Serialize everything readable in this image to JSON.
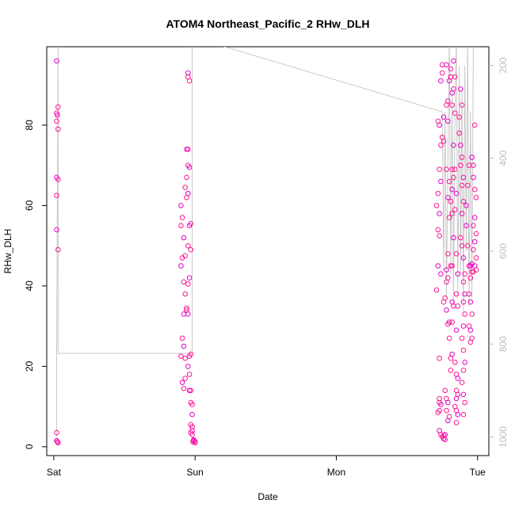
{
  "chart_data": {
    "type": "scatter",
    "title": "ATOM4 Northeast_Pacific_2 RHw_DLH",
    "xlabel": "Date",
    "ylabel": "RHw_DLH",
    "xlim": [
      -0.05,
      3.08
    ],
    "ylim": [
      -2.2,
      99.5
    ],
    "x_ticks": [
      {
        "v": 0,
        "label": "Sat"
      },
      {
        "v": 1,
        "label": "Sun"
      },
      {
        "v": 2,
        "label": "Mon"
      },
      {
        "v": 3,
        "label": "Tue"
      }
    ],
    "y_ticks": [
      0,
      20,
      40,
      60,
      80
    ],
    "secondary_axis": {
      "label": "",
      "ylim": [
        1040,
        160
      ],
      "ticks": [
        200,
        400,
        600,
        800,
        1000
      ],
      "color": "#bdbdbd"
    },
    "grid": false,
    "colors": {
      "points": "#ff1493",
      "points_alt": "#e600c8",
      "line": "#c8c8c8",
      "axis": "#000000"
    },
    "series": [
      {
        "kind": "line",
        "axis": "secondary",
        "points": [
          [
            0.02,
            1000
          ],
          [
            0.02,
            820
          ],
          [
            0.03,
            150
          ],
          [
            0.03,
            820
          ],
          [
            0.98,
            820
          ],
          [
            0.98,
            150
          ],
          [
            1.0,
            150
          ],
          [
            1.1,
            150
          ],
          [
            2.75,
            300
          ],
          [
            2.76,
            640
          ],
          [
            2.77,
            300
          ],
          [
            2.78,
            700
          ],
          [
            2.79,
            400
          ],
          [
            2.8,
            150
          ],
          [
            2.81,
            650
          ],
          [
            2.82,
            250
          ],
          [
            2.83,
            720
          ],
          [
            2.84,
            300
          ],
          [
            2.85,
            150
          ],
          [
            2.86,
            700
          ],
          [
            2.87,
            200
          ],
          [
            2.88,
            650
          ],
          [
            2.89,
            250
          ],
          [
            2.9,
            730
          ],
          [
            2.91,
            200
          ],
          [
            2.92,
            600
          ],
          [
            2.93,
            150
          ],
          [
            2.94,
            720
          ],
          [
            2.95,
            300
          ],
          [
            2.96,
            700
          ],
          [
            2.97,
            150
          ],
          [
            2.98,
            150
          ]
        ]
      },
      {
        "kind": "points",
        "axis": "primary",
        "points": [
          [
            0.02,
            96
          ],
          [
            0.03,
            84.5
          ],
          [
            0.02,
            83
          ],
          [
            0.025,
            82.5
          ],
          [
            0.02,
            81
          ],
          [
            0.03,
            79
          ],
          [
            0.02,
            67
          ],
          [
            0.03,
            66.5
          ],
          [
            0.02,
            62.5
          ],
          [
            0.02,
            54
          ],
          [
            0.03,
            49
          ],
          [
            0.02,
            3.5
          ],
          [
            0.02,
            1.5
          ],
          [
            0.025,
            1.2
          ],
          [
            0.03,
            1.0
          ],
          [
            0.9,
            60
          ],
          [
            0.91,
            57
          ],
          [
            0.9,
            55
          ],
          [
            0.92,
            52
          ],
          [
            0.91,
            47
          ],
          [
            0.93,
            47.5
          ],
          [
            0.9,
            45
          ],
          [
            0.92,
            41
          ],
          [
            0.93,
            38
          ],
          [
            0.92,
            33
          ],
          [
            0.94,
            34
          ],
          [
            0.91,
            27
          ],
          [
            0.92,
            25
          ],
          [
            0.93,
            22
          ],
          [
            0.9,
            22.5
          ],
          [
            0.91,
            16
          ],
          [
            0.92,
            14.5
          ],
          [
            0.93,
            17
          ],
          [
            0.95,
            93
          ],
          [
            0.95,
            92
          ],
          [
            0.96,
            91
          ],
          [
            0.94,
            74
          ],
          [
            0.95,
            74
          ],
          [
            0.95,
            70
          ],
          [
            0.96,
            69.5
          ],
          [
            0.94,
            67
          ],
          [
            0.93,
            64.5
          ],
          [
            0.95,
            63
          ],
          [
            0.94,
            62
          ],
          [
            0.97,
            55.5
          ],
          [
            0.96,
            55
          ],
          [
            0.95,
            50
          ],
          [
            0.97,
            49
          ],
          [
            0.96,
            42
          ],
          [
            0.95,
            40.5
          ],
          [
            0.94,
            34.5
          ],
          [
            0.95,
            33
          ],
          [
            0.97,
            23
          ],
          [
            0.96,
            22.5
          ],
          [
            0.95,
            20
          ],
          [
            0.96,
            18
          ],
          [
            0.97,
            14
          ],
          [
            0.96,
            14
          ],
          [
            0.97,
            11
          ],
          [
            0.98,
            10.5
          ],
          [
            0.98,
            8
          ],
          [
            0.97,
            5.5
          ],
          [
            0.98,
            5
          ],
          [
            0.98,
            4
          ],
          [
            0.97,
            3.5
          ],
          [
            0.98,
            3
          ],
          [
            0.99,
            1.5
          ],
          [
            0.985,
            1.2
          ],
          [
            1.0,
            1.3
          ],
          [
            0.99,
            1.7
          ],
          [
            1.0,
            1.0
          ],
          [
            2.72,
            81
          ],
          [
            2.73,
            80
          ],
          [
            2.74,
            75
          ],
          [
            2.73,
            69
          ],
          [
            2.74,
            66
          ],
          [
            2.72,
            63
          ],
          [
            2.71,
            60
          ],
          [
            2.73,
            58
          ],
          [
            2.72,
            54
          ],
          [
            2.73,
            52.5
          ],
          [
            2.72,
            45
          ],
          [
            2.71,
            39
          ],
          [
            2.73,
            22
          ],
          [
            2.74,
            91
          ],
          [
            2.75,
            93
          ],
          [
            2.75,
            95
          ],
          [
            2.76,
            82
          ],
          [
            2.75,
            77
          ],
          [
            2.76,
            76
          ],
          [
            2.74,
            43
          ],
          [
            2.73,
            12
          ],
          [
            2.73,
            11
          ],
          [
            2.74,
            10.5
          ],
          [
            2.73,
            9
          ],
          [
            2.72,
            8.5
          ],
          [
            2.73,
            4
          ],
          [
            2.74,
            3
          ],
          [
            2.75,
            2.5
          ],
          [
            2.76,
            2
          ],
          [
            2.76,
            2.8
          ],
          [
            2.77,
            1.8
          ],
          [
            2.77,
            3
          ],
          [
            2.76,
            36
          ],
          [
            2.77,
            37
          ],
          [
            2.78,
            34
          ],
          [
            2.78,
            41
          ],
          [
            2.79,
            42
          ],
          [
            2.78,
            44
          ],
          [
            2.79,
            48
          ],
          [
            2.8,
            57
          ],
          [
            2.79,
            62
          ],
          [
            2.8,
            66
          ],
          [
            2.78,
            69
          ],
          [
            2.79,
            81
          ],
          [
            2.78,
            85
          ],
          [
            2.79,
            86
          ],
          [
            2.8,
            91
          ],
          [
            2.81,
            92
          ],
          [
            2.81,
            94
          ],
          [
            2.78,
            95
          ],
          [
            2.77,
            14
          ],
          [
            2.78,
            12
          ],
          [
            2.79,
            11
          ],
          [
            2.78,
            9
          ],
          [
            2.8,
            7.5
          ],
          [
            2.79,
            6.5
          ],
          [
            2.8,
            27
          ],
          [
            2.79,
            30.5
          ],
          [
            2.8,
            31
          ],
          [
            2.81,
            19
          ],
          [
            2.81,
            22
          ],
          [
            2.82,
            23
          ],
          [
            2.82,
            31
          ],
          [
            2.83,
            35
          ],
          [
            2.82,
            36
          ],
          [
            2.81,
            45
          ],
          [
            2.82,
            45
          ],
          [
            2.83,
            52
          ],
          [
            2.82,
            58
          ],
          [
            2.81,
            61
          ],
          [
            2.82,
            64
          ],
          [
            2.83,
            67
          ],
          [
            2.82,
            69
          ],
          [
            2.83,
            75
          ],
          [
            2.82,
            85
          ],
          [
            2.83,
            89
          ],
          [
            2.82,
            88
          ],
          [
            2.81,
            92
          ],
          [
            2.84,
            92
          ],
          [
            2.83,
            96
          ],
          [
            2.84,
            83
          ],
          [
            2.84,
            69
          ],
          [
            2.85,
            63
          ],
          [
            2.84,
            59
          ],
          [
            2.85,
            48
          ],
          [
            2.86,
            43
          ],
          [
            2.85,
            38
          ],
          [
            2.86,
            35
          ],
          [
            2.85,
            29
          ],
          [
            2.84,
            21
          ],
          [
            2.85,
            18
          ],
          [
            2.86,
            17
          ],
          [
            2.85,
            14
          ],
          [
            2.86,
            13
          ],
          [
            2.85,
            12
          ],
          [
            2.84,
            10
          ],
          [
            2.85,
            9
          ],
          [
            2.86,
            8
          ],
          [
            2.85,
            6
          ],
          [
            2.87,
            82
          ],
          [
            2.88,
            89
          ],
          [
            2.89,
            85
          ],
          [
            2.87,
            78
          ],
          [
            2.88,
            75
          ],
          [
            2.89,
            72
          ],
          [
            2.88,
            70
          ],
          [
            2.9,
            67
          ],
          [
            2.89,
            65
          ],
          [
            2.9,
            61
          ],
          [
            2.89,
            58
          ],
          [
            2.88,
            52
          ],
          [
            2.89,
            50
          ],
          [
            2.9,
            47
          ],
          [
            2.91,
            43
          ],
          [
            2.9,
            41
          ],
          [
            2.91,
            38
          ],
          [
            2.9,
            36
          ],
          [
            2.91,
            33
          ],
          [
            2.9,
            30
          ],
          [
            2.89,
            27
          ],
          [
            2.9,
            24
          ],
          [
            2.91,
            21
          ],
          [
            2.9,
            19
          ],
          [
            2.89,
            16
          ],
          [
            2.9,
            13
          ],
          [
            2.91,
            11
          ],
          [
            2.9,
            8
          ],
          [
            2.92,
            60
          ],
          [
            2.93,
            65
          ],
          [
            2.94,
            70
          ],
          [
            2.92,
            55
          ],
          [
            2.93,
            50
          ],
          [
            2.94,
            45
          ],
          [
            2.95,
            45
          ],
          [
            2.96,
            43.5
          ],
          [
            2.97,
            43.5
          ],
          [
            2.96,
            45.5
          ],
          [
            2.95,
            42
          ],
          [
            2.94,
            38
          ],
          [
            2.95,
            36
          ],
          [
            2.96,
            33
          ],
          [
            2.94,
            30
          ],
          [
            2.95,
            29
          ],
          [
            2.96,
            27
          ],
          [
            2.95,
            26
          ],
          [
            2.96,
            72
          ],
          [
            2.97,
            70
          ],
          [
            2.98,
            80
          ],
          [
            2.97,
            67
          ],
          [
            2.98,
            64
          ],
          [
            2.99,
            62
          ],
          [
            2.98,
            57
          ],
          [
            2.97,
            55
          ],
          [
            2.99,
            53
          ],
          [
            2.98,
            51
          ],
          [
            2.97,
            49
          ],
          [
            2.99,
            47
          ],
          [
            2.98,
            45
          ],
          [
            2.99,
            44
          ]
        ]
      }
    ]
  }
}
